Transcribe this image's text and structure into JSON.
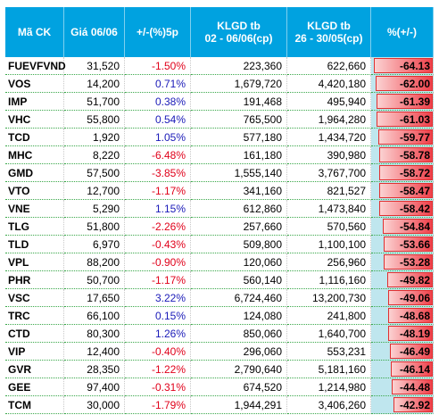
{
  "table": {
    "columns": [
      [
        "Mã CK"
      ],
      [
        "Giá 06/06"
      ],
      [
        "+/-(%)5p"
      ],
      [
        "KLGD tb",
        "02 - 06/06(cp)"
      ],
      [
        "KLGD tb",
        "26 - 30/05(cp)"
      ],
      [
        "%(+/-)"
      ]
    ],
    "rows": [
      [
        "FUEVFVND",
        "31,520",
        "-1.50%",
        "223,360",
        "622,660",
        "-64.13"
      ],
      [
        "VOS",
        "14,200",
        "0.71%",
        "1,679,720",
        "4,420,180",
        "-62.00"
      ],
      [
        "IMP",
        "51,700",
        "0.38%",
        "191,468",
        "495,940",
        "-61.39"
      ],
      [
        "VHC",
        "55,800",
        "0.54%",
        "765,500",
        "1,964,280",
        "-61.03"
      ],
      [
        "TCD",
        "1,920",
        "1.05%",
        "577,180",
        "1,434,720",
        "-59.77"
      ],
      [
        "MHC",
        "8,220",
        "-6.48%",
        "161,180",
        "390,980",
        "-58.78"
      ],
      [
        "GMD",
        "57,500",
        "-3.85%",
        "1,555,140",
        "3,767,700",
        "-58.72"
      ],
      [
        "VTO",
        "12,700",
        "-1.17%",
        "341,160",
        "821,527",
        "-58.47"
      ],
      [
        "VNE",
        "5,290",
        "1.15%",
        "612,860",
        "1,473,840",
        "-58.42"
      ],
      [
        "TLG",
        "51,800",
        "-2.26%",
        "257,660",
        "570,560",
        "-54.84"
      ],
      [
        "TLD",
        "6,970",
        "-0.43%",
        "509,800",
        "1,100,100",
        "-53.66"
      ],
      [
        "VPL",
        "88,200",
        "-0.90%",
        "120,060",
        "256,960",
        "-53.28"
      ],
      [
        "PHR",
        "50,700",
        "-1.17%",
        "560,140",
        "1,116,160",
        "-49.82"
      ],
      [
        "VSC",
        "17,650",
        "3.22%",
        "6,724,460",
        "13,200,730",
        "-49.06"
      ],
      [
        "TRC",
        "66,100",
        "0.15%",
        "124,080",
        "241,800",
        "-48.68"
      ],
      [
        "CTD",
        "80,300",
        "1.26%",
        "850,060",
        "1,640,700",
        "-48.19"
      ],
      [
        "VIP",
        "12,400",
        "-0.40%",
        "296,060",
        "553,231",
        "-46.49"
      ],
      [
        "GVR",
        "28,350",
        "-1.22%",
        "2,790,640",
        "5,181,160",
        "-46.14"
      ],
      [
        "GEE",
        "97,400",
        "-0.31%",
        "674,520",
        "1,214,980",
        "-44.48"
      ],
      [
        "TCM",
        "30,000",
        "-1.79%",
        "1,944,291",
        "3,406,260",
        "-42.92"
      ]
    ]
  }
}
